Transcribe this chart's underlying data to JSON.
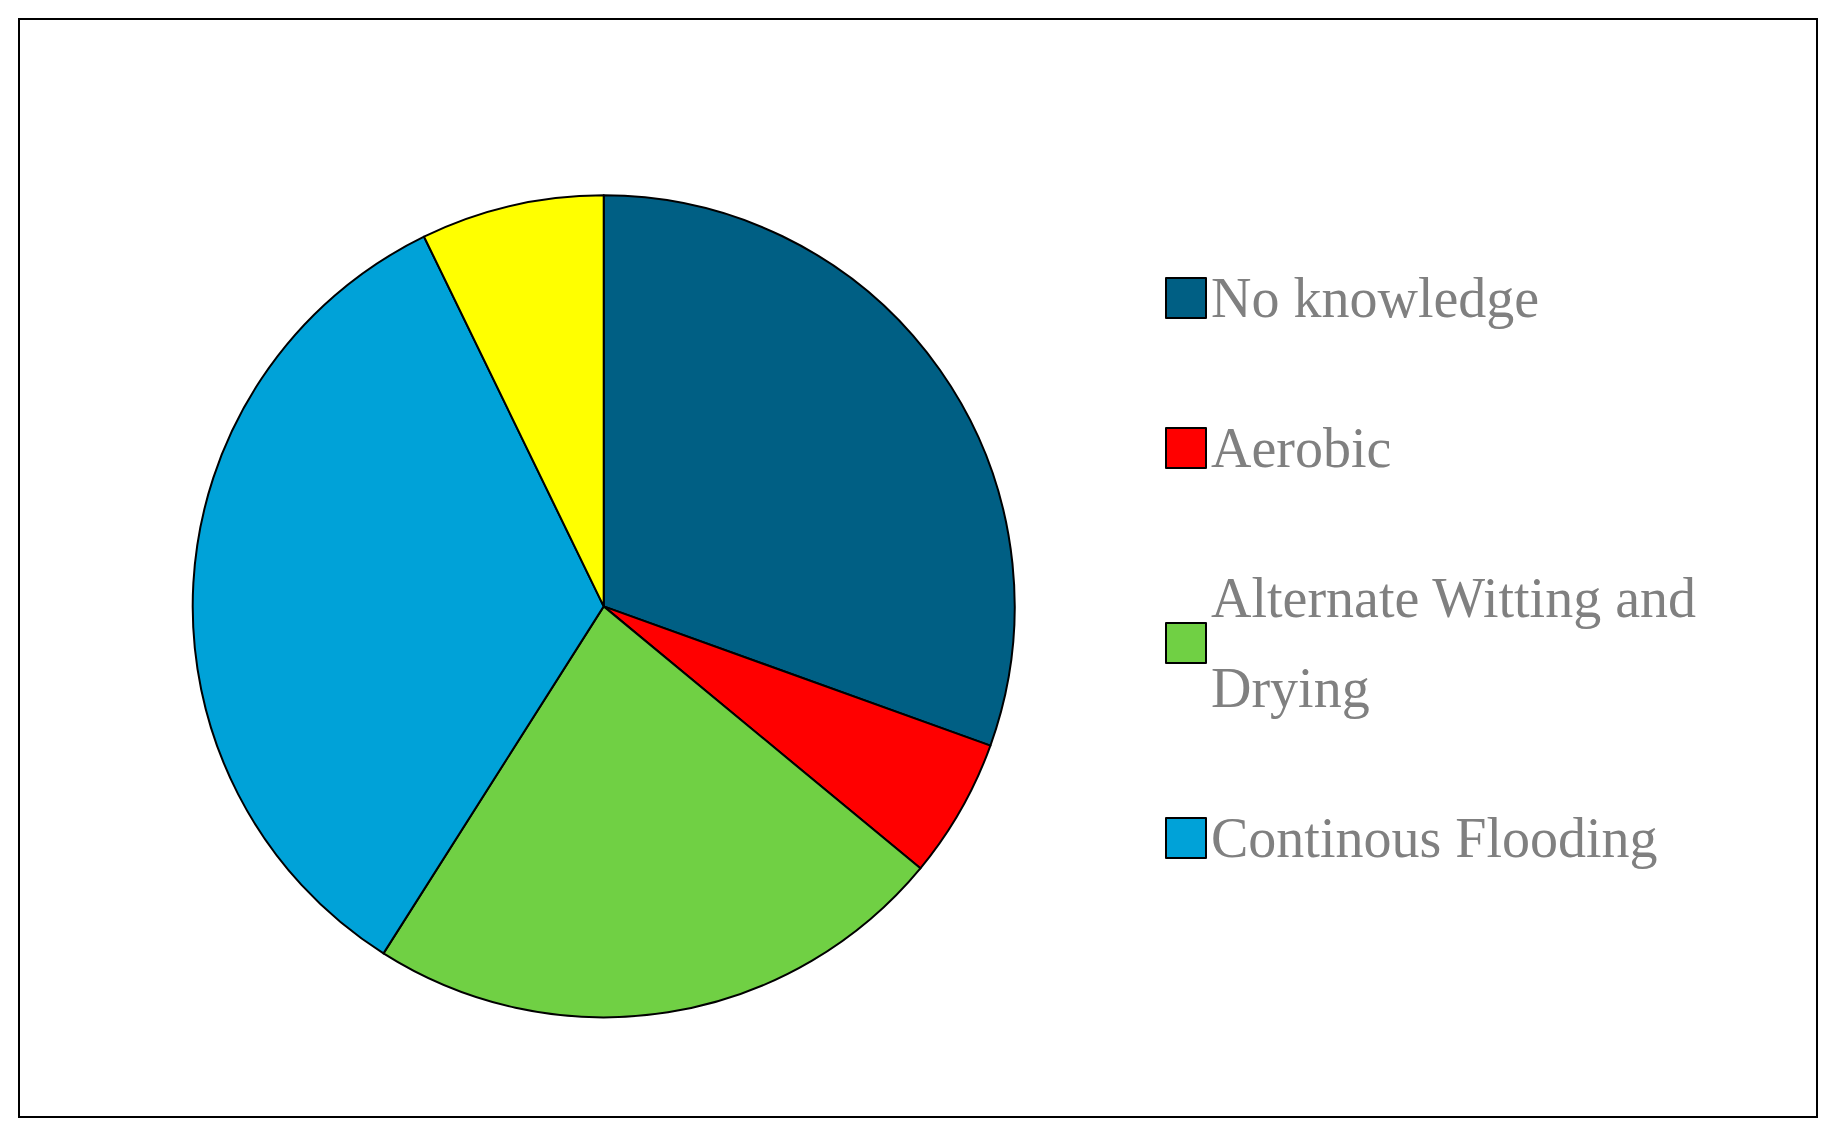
{
  "chart_data": {
    "type": "pie",
    "categories": [
      "No knowledge",
      "Aerobic",
      "Alternate Witting and Drying",
      "Continous Flooding",
      null
    ],
    "values": [
      30.5,
      5.5,
      23,
      33.8,
      7.2
    ],
    "colors": [
      "#005f84",
      "#ff0000",
      "#70d044",
      "#00a2d8",
      "#ffff00"
    ],
    "legend": "right"
  }
}
